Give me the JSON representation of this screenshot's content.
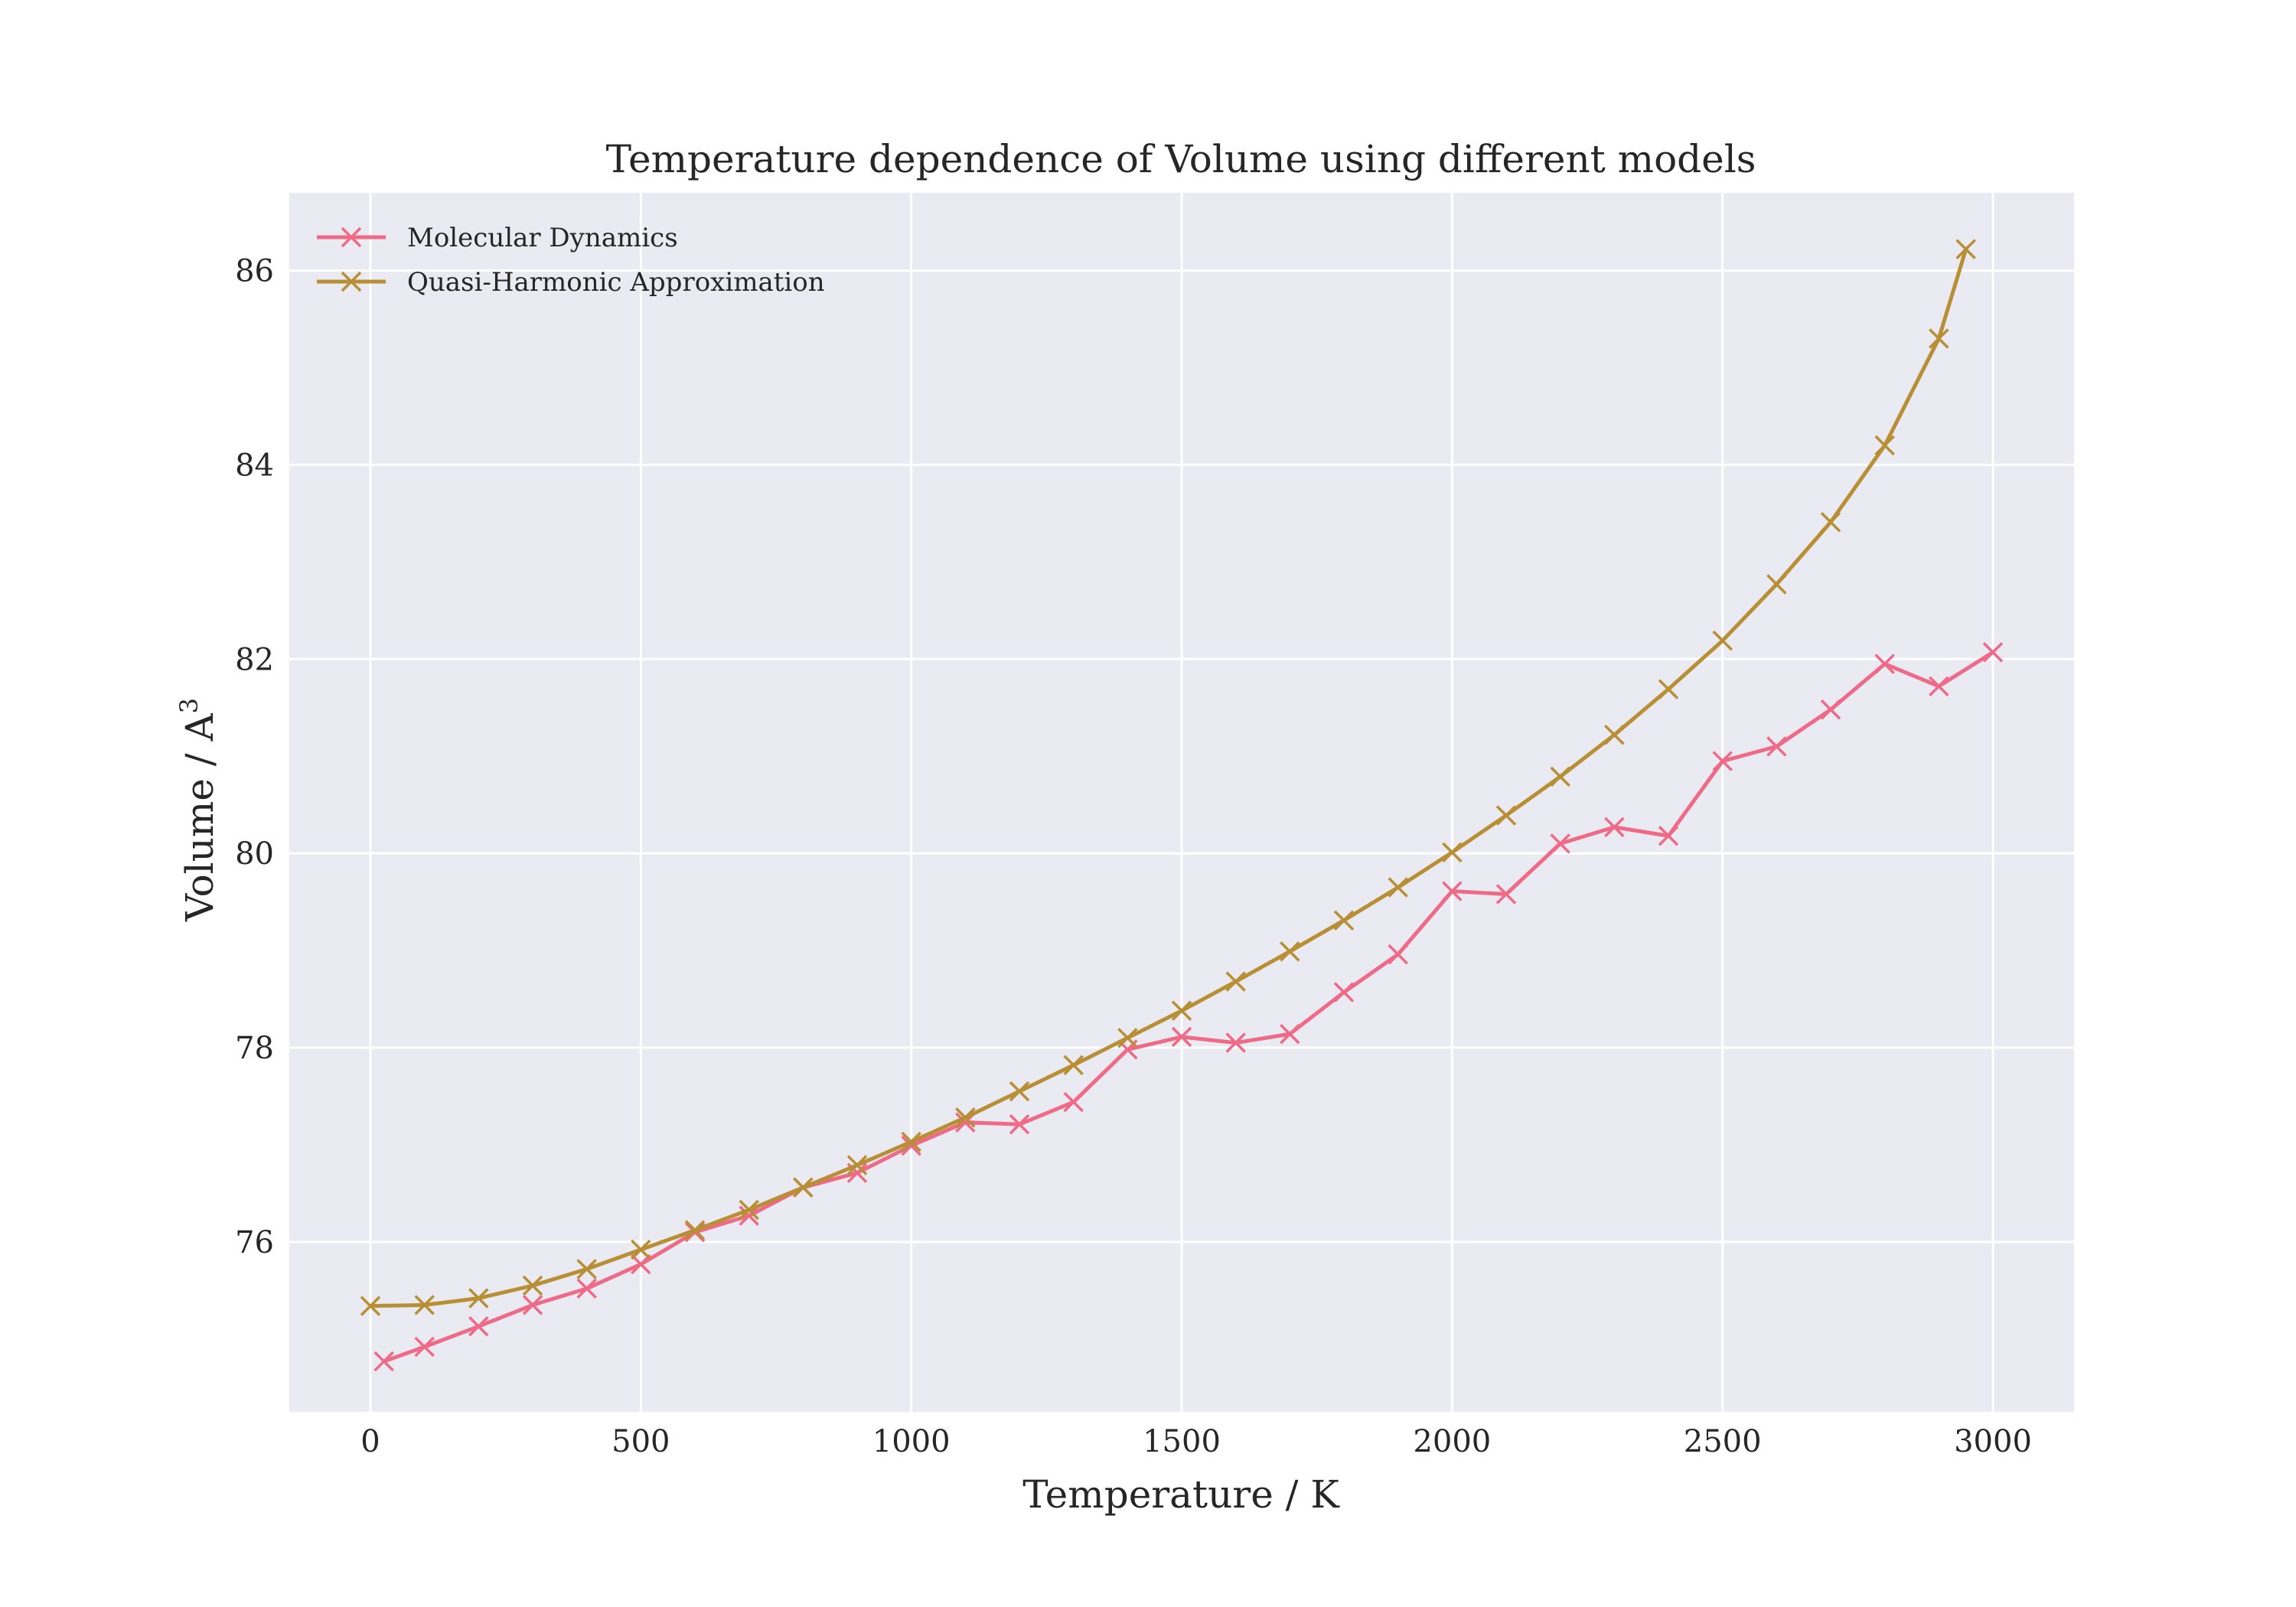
{
  "chart_data": {
    "type": "line",
    "title": "Temperature dependence of Volume using different models",
    "xlabel": "Temperature / K",
    "ylabel": "Volume / A",
    "ylabel_superscript": "3",
    "xlim": [
      -150,
      3150
    ],
    "ylim": [
      74.25,
      86.8
    ],
    "xticks": [
      0,
      500,
      1000,
      1500,
      2000,
      2500,
      3000
    ],
    "xtick_labels": [
      "0",
      "500",
      "1000",
      "1500",
      "2000",
      "2500",
      "3000"
    ],
    "yticks": [
      76,
      78,
      80,
      82,
      84,
      86
    ],
    "ytick_labels": [
      "76",
      "78",
      "80",
      "82",
      "84",
      "86"
    ],
    "grid": true,
    "legend_position": "top-left",
    "background_color": "#eaeaf2",
    "grid_color": "#ffffff",
    "series": [
      {
        "name": "Molecular Dynamics",
        "color": "#ee6a86",
        "marker": "x",
        "x": [
          25,
          100,
          200,
          300,
          400,
          500,
          600,
          700,
          800,
          900,
          1000,
          1100,
          1200,
          1300,
          1400,
          1500,
          1600,
          1700,
          1800,
          1900,
          2000,
          2100,
          2200,
          2300,
          2400,
          2500,
          2600,
          2700,
          2800,
          2900,
          3000
        ],
        "y": [
          74.77,
          74.92,
          75.13,
          75.35,
          75.52,
          75.77,
          76.1,
          76.27,
          76.56,
          76.71,
          76.99,
          77.23,
          77.21,
          77.44,
          77.98,
          78.11,
          78.05,
          78.14,
          78.57,
          78.96,
          79.61,
          79.58,
          80.1,
          80.27,
          80.18,
          80.95,
          81.1,
          81.48,
          81.95,
          81.72,
          82.07
        ]
      },
      {
        "name": "Quasi-Harmonic Approximation",
        "color": "#b88f34",
        "marker": "x",
        "x": [
          0,
          100,
          200,
          300,
          400,
          500,
          600,
          700,
          800,
          900,
          1000,
          1100,
          1200,
          1300,
          1400,
          1500,
          1600,
          1700,
          1800,
          1900,
          2000,
          2100,
          2200,
          2300,
          2400,
          2500,
          2600,
          2700,
          2800,
          2900,
          2950
        ],
        "y": [
          75.34,
          75.35,
          75.42,
          75.55,
          75.72,
          75.92,
          76.12,
          76.33,
          76.56,
          76.79,
          77.03,
          77.28,
          77.55,
          77.82,
          78.1,
          78.38,
          78.68,
          78.99,
          79.31,
          79.65,
          80.01,
          80.39,
          80.79,
          81.22,
          81.69,
          82.19,
          82.77,
          83.41,
          84.2,
          85.3,
          86.22
        ]
      }
    ]
  }
}
